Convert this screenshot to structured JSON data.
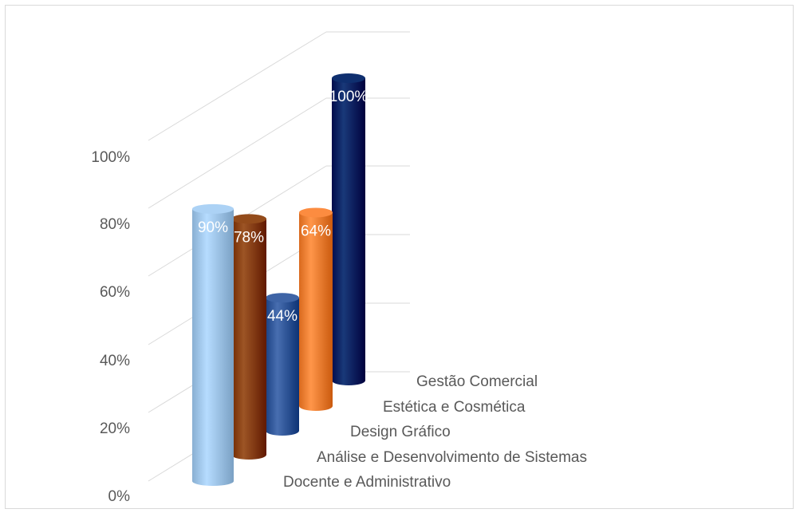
{
  "chart_data": {
    "type": "bar",
    "style": "3d-cylinder",
    "categories": [
      "Docente e Administrativo",
      "Análise e Desenvolvimento de Sistemas",
      "Design Gráfico",
      "Estética e Cosmética",
      "Gestão Comercial"
    ],
    "values": [
      90,
      78,
      44,
      64,
      100
    ],
    "data_labels": [
      "90%",
      "78%",
      "44%",
      "64%",
      "100%"
    ],
    "colors": [
      "#9DC3E6",
      "#843C0C",
      "#2F5597",
      "#ED7D31",
      "#002060"
    ],
    "yticks": [
      "0%",
      "20%",
      "40%",
      "60%",
      "80%",
      "100%"
    ],
    "ylim": [
      0,
      100
    ],
    "grid": true,
    "legend": "none"
  }
}
